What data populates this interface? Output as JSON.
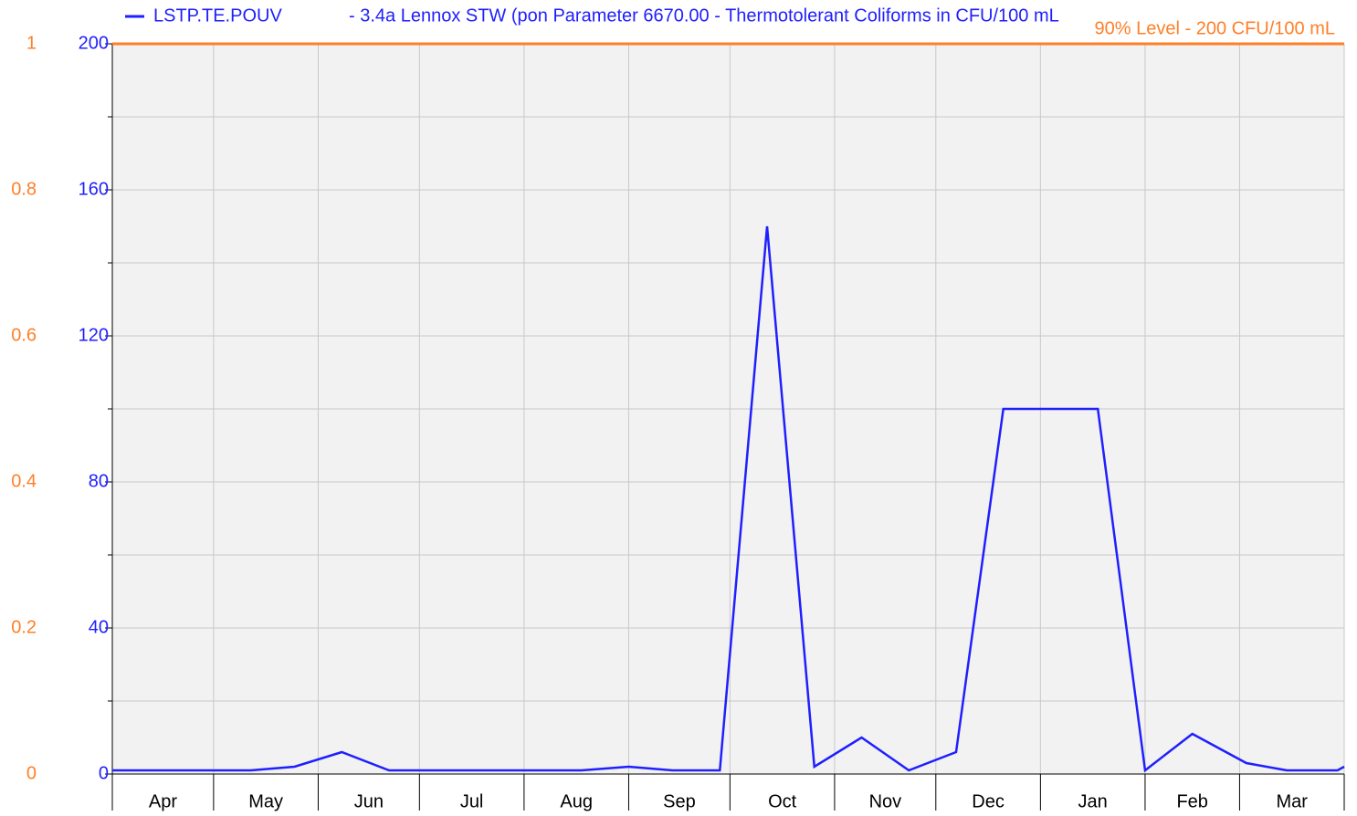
{
  "chart_data": {
    "type": "line",
    "series": [
      {
        "name": "LSTP.TE.POUV",
        "description": "- 3.4a Lennox STW (pon Parameter 6670.00 - Thermotolerant Coliforms in CFU/100 mL",
        "color": "#1f1fff",
        "x": [
          0,
          41,
          54,
          68,
          82,
          139,
          153,
          166,
          180,
          194,
          208,
          222,
          236,
          250,
          264,
          292,
          306,
          320,
          336,
          348,
          363,
          365
        ],
        "values": [
          1,
          1,
          2,
          6,
          1,
          1,
          2,
          1,
          1,
          150,
          2,
          10,
          1,
          6,
          100,
          100,
          1,
          11,
          3,
          1,
          1,
          2
        ]
      }
    ],
    "months": [
      "Apr",
      "May",
      "Jun",
      "Jul",
      "Aug",
      "Sep",
      "Oct",
      "Nov",
      "Dec",
      "Jan",
      "Feb",
      "Mar"
    ],
    "month_starts": [
      0,
      30,
      61,
      91,
      122,
      153,
      183,
      214,
      244,
      275,
      306,
      334,
      365
    ],
    "xlim": [
      0,
      365
    ],
    "ylim": [
      0,
      200
    ],
    "yticks": [
      0,
      40,
      80,
      120,
      160,
      200
    ],
    "yminor": [
      20,
      60,
      100,
      140,
      180
    ],
    "y2lim": [
      0,
      1
    ],
    "y2ticks": [
      0,
      0.2,
      0.4,
      0.6,
      0.8,
      1
    ],
    "y2color": "#ff7f27",
    "threshold": {
      "value": 200,
      "label": "90% Level - 200 CFU/100 mL",
      "color": "#ff7f27"
    },
    "grid": true
  }
}
